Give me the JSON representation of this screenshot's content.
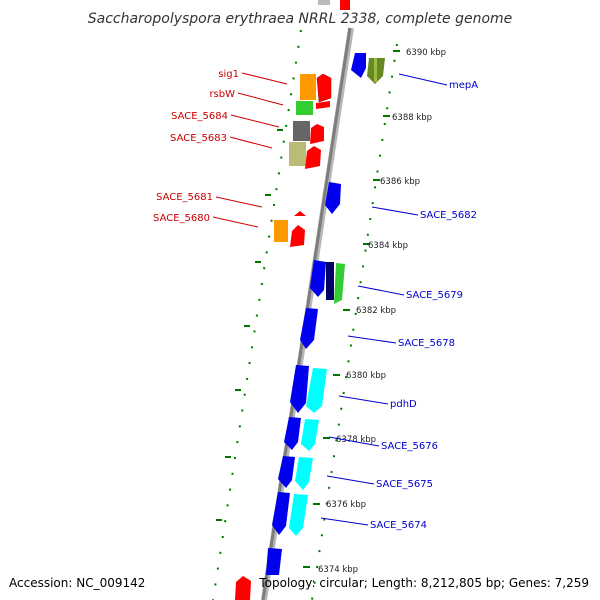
{
  "header": {
    "title": "Saccharopolyspora erythraea NRRL 2338, complete genome"
  },
  "footer": {
    "accession": "Accession: NC_009142",
    "topology": "Topology: circular; Length: 8,212,805 bp; Genes: 7,259"
  },
  "kbp_labels": [
    "6390 kbp",
    "6388 kbp",
    "6386 kbp",
    "6384 kbp",
    "6382 kbp",
    "6380 kbp",
    "6378 kbp",
    "6376 kbp",
    "6374 kbp"
  ],
  "colors": {
    "reverse_label": "#cc0000",
    "forward_label": "#0000cc",
    "backbone": "#8c8c8c",
    "tick": "#007700",
    "gene_red": "#ff0000",
    "gene_blue": "#0000ee",
    "gene_cyan": "#00ffff",
    "gene_orange": "#ff9900",
    "gene_green": "#33cc33",
    "gene_olive": "#668822",
    "gene_gray": "#666666",
    "gene_khaki": "#bbbb77",
    "gene_navy": "#000066"
  },
  "genes_reverse": [
    "sig1",
    "rsbW",
    "SACE_5684",
    "SACE_5683",
    "SACE_5681",
    "SACE_5680"
  ],
  "genes_forward": [
    "mepA",
    "SACE_5682",
    "SACE_5679",
    "SACE_5678",
    "pdhD",
    "SACE_5676",
    "SACE_5675",
    "SACE_5674"
  ]
}
